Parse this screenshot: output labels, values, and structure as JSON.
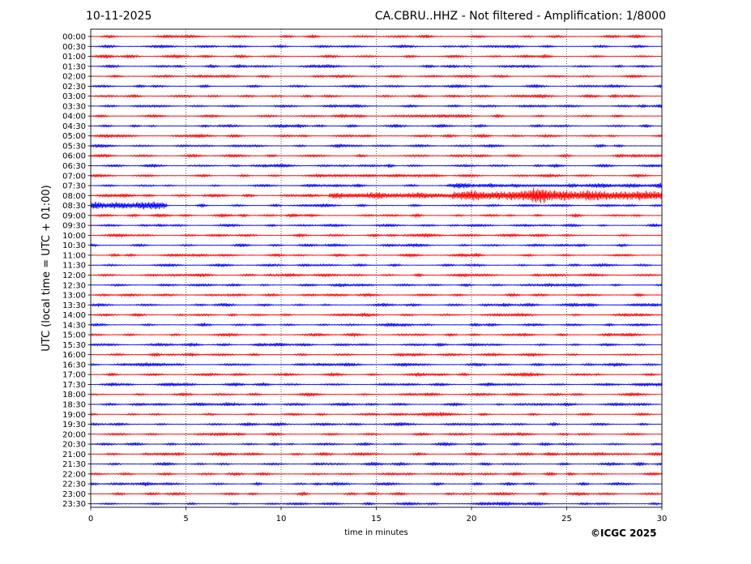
{
  "header": {
    "date": "10-11-2025",
    "title": "CA.CBRU..HHZ - Not filtered - Amplification: 1/8000"
  },
  "footer": {
    "credit": "©ICGC 2025"
  },
  "chart_data": {
    "type": "line",
    "title": "CA.CBRU..HHZ - Not filtered - Amplification: 1/8000",
    "xlabel": "time in minutes",
    "ylabel": "UTC (local time = UTC + 01:00)",
    "xlim": [
      0,
      30
    ],
    "xticks": [
      0,
      5,
      10,
      15,
      20,
      25,
      30
    ],
    "grid": "vertical dotted lines at x ticks",
    "row_labels": [
      "00:00",
      "00:30",
      "01:00",
      "01:30",
      "02:00",
      "02:30",
      "03:00",
      "03:30",
      "04:00",
      "04:30",
      "05:00",
      "05:30",
      "06:00",
      "06:30",
      "07:00",
      "07:30",
      "08:00",
      "08:30",
      "09:00",
      "09:30",
      "10:00",
      "10:30",
      "11:00",
      "11:30",
      "12:00",
      "12:30",
      "13:00",
      "13:30",
      "14:00",
      "14:30",
      "15:00",
      "15:30",
      "16:00",
      "16:30",
      "17:00",
      "17:30",
      "18:00",
      "18:30",
      "19:00",
      "19:30",
      "20:00",
      "20:30",
      "21:00",
      "21:30",
      "22:00",
      "22:30",
      "23:00",
      "23:30"
    ],
    "trace_colors": [
      "#ff0000",
      "#0000ff"
    ],
    "events": [
      {
        "row": "07:30",
        "start_min": 18.7,
        "end_min": 30,
        "peak_amplitude": "small"
      },
      {
        "row": "08:00",
        "start_min": 12.5,
        "end_min": 30,
        "peak_min": 23.5,
        "peak_amplitude": "large"
      },
      {
        "row": "08:30",
        "start_min": 0,
        "end_min": 4,
        "peak_amplitude": "medium"
      }
    ]
  }
}
